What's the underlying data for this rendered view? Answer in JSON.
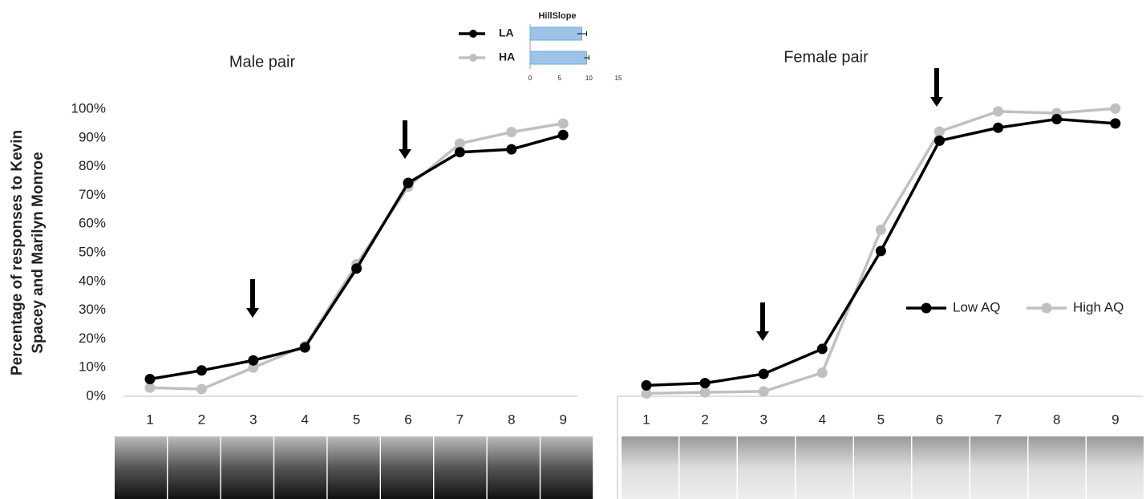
{
  "chart_data": [
    {
      "type": "line",
      "title": "Male pair",
      "y_label": [
        "Percentage of responses to Kevin",
        "Spacey and Marilyn Monroe"
      ],
      "categories": [
        "1",
        "2",
        "3",
        "4",
        "5",
        "6",
        "7",
        "8",
        "9"
      ],
      "series": [
        {
          "color": "#000000",
          "values": [
            6,
            9,
            12.5,
            17,
            44.5,
            74.3,
            85,
            86,
            91
          ]
        },
        {
          "color": "#c0c0c0",
          "values": [
            3,
            2.5,
            10,
            17.5,
            46,
            73,
            88,
            92,
            95
          ]
        }
      ],
      "ylim": [
        0,
        100
      ],
      "yticks": [
        {
          "value": 0,
          "label": "0%"
        },
        {
          "value": 10,
          "label": "10%"
        },
        {
          "value": 20,
          "label": "20%"
        },
        {
          "value": 30,
          "label": "30%"
        },
        {
          "value": 40,
          "label": "40%"
        },
        {
          "value": 50,
          "label": "50%"
        },
        {
          "value": 60,
          "label": "60%"
        },
        {
          "value": 70,
          "label": "70%"
        },
        {
          "value": 80,
          "label": "80%"
        },
        {
          "value": 90,
          "label": "90%"
        },
        {
          "value": 100,
          "label": "100%"
        }
      ]
    },
    {
      "type": "line",
      "title": "Female pair",
      "categories": [
        "1",
        "2",
        "3",
        "4",
        "5",
        "6",
        "7",
        "8",
        "9"
      ],
      "series": [
        {
          "name": "Low AQ",
          "color": "#000000",
          "values": [
            3.8,
            4.6,
            7.8,
            16.5,
            50.6,
            89,
            93.5,
            96.5,
            95
          ]
        },
        {
          "name": "High AQ",
          "color": "#c0c0c0",
          "values": [
            1,
            1.4,
            1.7,
            8.2,
            58,
            92.2,
            99.2,
            98.6,
            100.2
          ]
        }
      ],
      "ylim": [
        0,
        100
      ]
    },
    {
      "type": "hbar",
      "title": "HillSlope",
      "categories": [
        "LA",
        "HA"
      ],
      "colors": [
        "#000000",
        "#c0c0c0"
      ],
      "values": [
        8.8,
        9.6
      ],
      "errors": [
        0.8,
        0.4
      ],
      "bar_color": "#9dc3e6",
      "xlim": [
        0,
        15
      ],
      "xticks": [
        0,
        5,
        10,
        15
      ]
    }
  ]
}
